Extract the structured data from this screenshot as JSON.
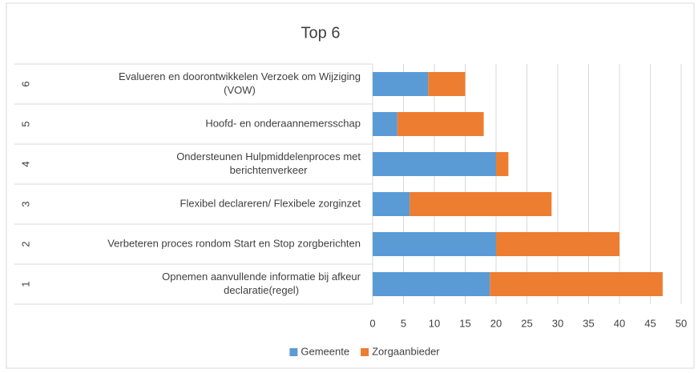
{
  "chart_data": {
    "type": "bar",
    "orientation": "horizontal",
    "stacked": true,
    "title": "Top 6",
    "categories": [
      {
        "rank": "1",
        "label": [
          "Opnemen aanvullende informatie bij afkeur",
          "declaratie(regel)"
        ]
      },
      {
        "rank": "2",
        "label": [
          "Verbeteren proces rondom Start en Stop zorgberichten"
        ]
      },
      {
        "rank": "3",
        "label": [
          "Flexibel declareren/ Flexibele zorginzet"
        ]
      },
      {
        "rank": "4",
        "label": [
          "Ondersteunen Hulpmiddelenproces met",
          "berichtenverkeer"
        ]
      },
      {
        "rank": "5",
        "label": [
          "Hoofd- en onderaannemersschap"
        ]
      },
      {
        "rank": "6",
        "label": [
          "Evalueren en doorontwikkelen Verzoek om Wijziging",
          "(VOW)"
        ]
      }
    ],
    "series": [
      {
        "name": "Gemeente",
        "color": "#5b9bd5",
        "values": [
          19,
          20,
          6,
          20,
          4,
          9
        ]
      },
      {
        "name": "Zorgaanbieder",
        "color": "#ed7d31",
        "values": [
          28,
          20,
          23,
          2,
          14,
          6
        ]
      }
    ],
    "xlim": [
      0,
      50
    ],
    "xticks": [
      0,
      5,
      10,
      15,
      20,
      25,
      30,
      35,
      40,
      45,
      50
    ],
    "grid": true,
    "legend": "bottom"
  }
}
